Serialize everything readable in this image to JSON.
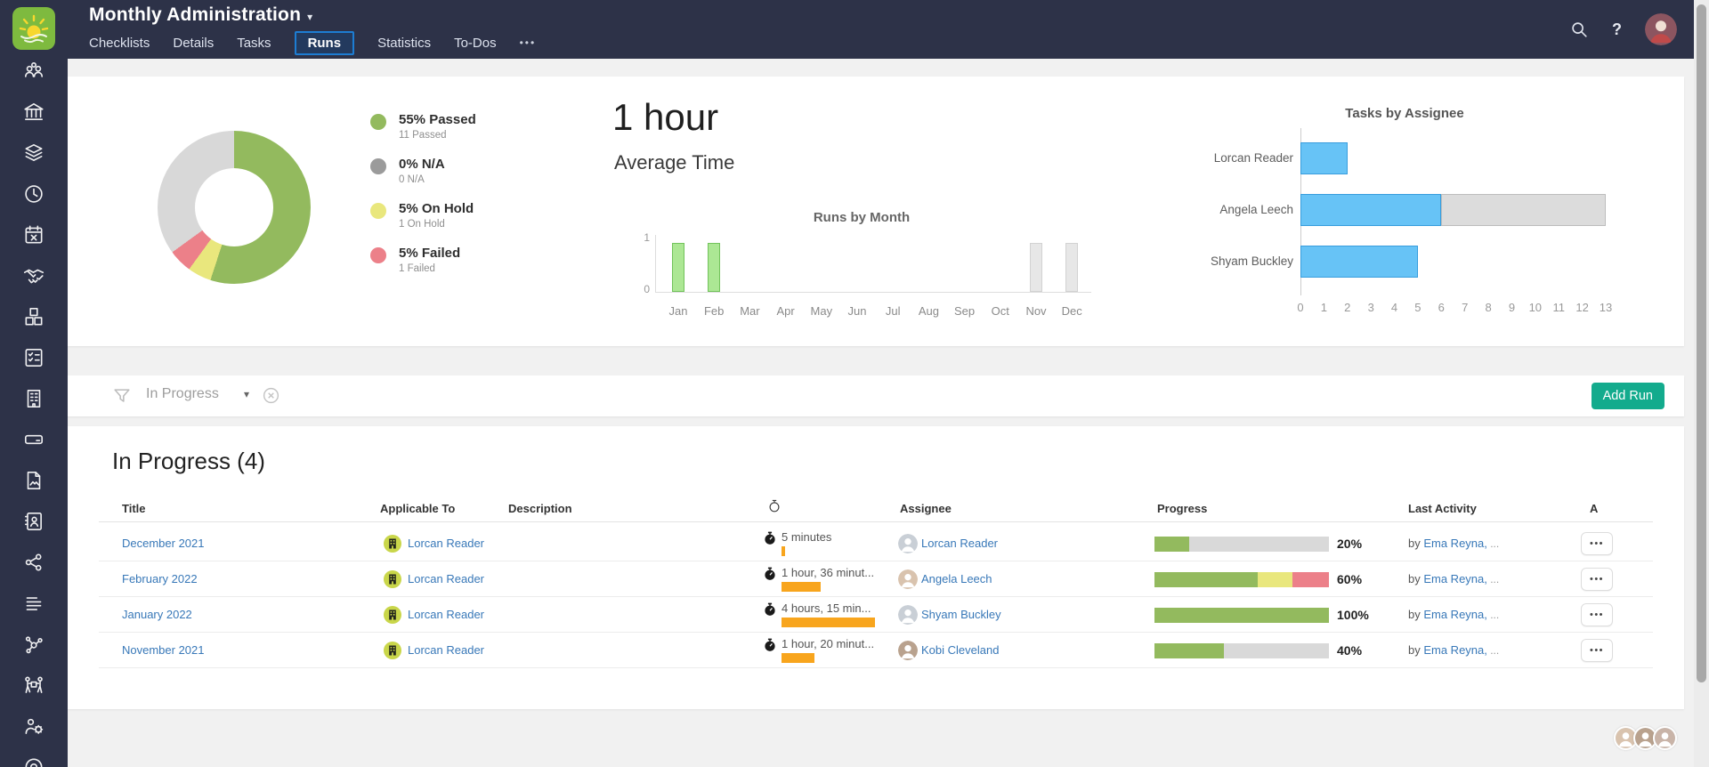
{
  "topbar": {
    "title": "Monthly Administration",
    "tabs": [
      {
        "label": "Checklists",
        "active": false
      },
      {
        "label": "Details",
        "active": false
      },
      {
        "label": "Tasks",
        "active": false
      },
      {
        "label": "Runs",
        "active": true
      },
      {
        "label": "Statistics",
        "active": false
      },
      {
        "label": "To-Dos",
        "active": false
      }
    ],
    "more_label": "•••",
    "help_label": "?"
  },
  "sidebar": {
    "icons": [
      "users-group",
      "bank",
      "layers",
      "clock",
      "calendar-x",
      "handshake",
      "cubes",
      "checklist",
      "building",
      "hard-drive",
      "file-image",
      "contact-book",
      "share-nodes",
      "text-lines",
      "network",
      "people-carry",
      "users-gear",
      "target"
    ]
  },
  "stats": {
    "average_value": "1 hour",
    "average_label": "Average Time",
    "legend": [
      {
        "label": "55% Passed",
        "sub": "11 Passed",
        "color": "#93ba5e"
      },
      {
        "label": "0% N/A",
        "sub": "0 N/A",
        "color": "#9b9b9b"
      },
      {
        "label": "5% On Hold",
        "sub": "1 On Hold",
        "color": "#e9e77d"
      },
      {
        "label": "5% Failed",
        "sub": "1 Failed",
        "color": "#ec8089"
      }
    ]
  },
  "chart_data": [
    {
      "type": "pie",
      "name": "run-status-donut",
      "slices": [
        {
          "label": "Passed",
          "pct": 55,
          "count": 11,
          "color": "#93ba5e"
        },
        {
          "label": "N/A",
          "pct": 0,
          "count": 0,
          "color": "#9b9b9b"
        },
        {
          "label": "On Hold",
          "pct": 5,
          "count": 1,
          "color": "#e9e77d"
        },
        {
          "label": "Failed",
          "pct": 5,
          "count": 1,
          "color": "#ec8089"
        },
        {
          "label": "Remaining",
          "pct": 35,
          "count": null,
          "color": "#d8d8d8"
        }
      ]
    },
    {
      "type": "bar",
      "title": "Runs by Month",
      "categories": [
        "Jan",
        "Feb",
        "Mar",
        "Apr",
        "May",
        "Jun",
        "Jul",
        "Aug",
        "Sep",
        "Oct",
        "Nov",
        "Dec"
      ],
      "values": [
        1,
        1,
        0,
        0,
        0,
        0,
        0,
        0,
        0,
        0,
        1,
        1
      ],
      "bar_colors": [
        "green",
        "green",
        "green",
        "green",
        "green",
        "green",
        "green",
        "green",
        "green",
        "green",
        "gray",
        "gray"
      ],
      "ylim": [
        0,
        1
      ],
      "yticks": [
        0,
        1
      ],
      "green_fill": "#ace794",
      "green_border": "#72c35b",
      "gray_fill": "#e7e7e7",
      "gray_border": "#d2d2d2"
    },
    {
      "type": "bar",
      "orientation": "horizontal",
      "title": "Tasks by Assignee",
      "categories": [
        "Lorcan Reader",
        "Angela Leech",
        "Shyam Buckley"
      ],
      "series": [
        {
          "name": "tasks",
          "color": "#67c3f6",
          "border": "#389ddd",
          "values": [
            2,
            6,
            5
          ]
        },
        {
          "name": "remaining",
          "color": "#dcdcdc",
          "border": "#bdbdbd",
          "values": [
            0,
            7,
            0
          ]
        }
      ],
      "xlim": [
        0,
        13
      ],
      "xticks": [
        0,
        1,
        2,
        3,
        4,
        5,
        6,
        7,
        8,
        9,
        10,
        11,
        12,
        13
      ]
    }
  ],
  "filter": {
    "value": "In Progress",
    "add_run_label": "Add Run"
  },
  "table": {
    "heading": "In Progress (4)",
    "columns": [
      "Title",
      "Applicable To",
      "Description",
      "timer",
      "Assignee",
      "Progress",
      "Last Activity",
      "A"
    ],
    "actions_label": "•••",
    "rows": [
      {
        "title": "December 2021",
        "applicable_to": "Lorcan Reader",
        "description": "",
        "time": "5 minutes",
        "time_bar": 4,
        "assignee": "Lorcan Reader",
        "progress": [
          {
            "color": "#93ba5e",
            "pct": 20
          },
          {
            "color": "#d9d9d9",
            "pct": 80
          }
        ],
        "progress_label": "20%",
        "activity_prefix": "by",
        "activity_link": "Ema Reyna,",
        "activity_more": "..."
      },
      {
        "title": "February 2022",
        "applicable_to": "Lorcan Reader",
        "description": "",
        "time": "1 hour, 36 minut...",
        "time_bar": 44,
        "assignee": "Angela Leech",
        "progress": [
          {
            "color": "#93ba5e",
            "pct": 59
          },
          {
            "color": "#e9e77d",
            "pct": 20
          },
          {
            "color": "#ec8089",
            "pct": 21
          }
        ],
        "progress_label": "60%",
        "activity_prefix": "by",
        "activity_link": "Ema Reyna,",
        "activity_more": "..."
      },
      {
        "title": "January 2022",
        "applicable_to": "Lorcan Reader",
        "description": "",
        "time": "4 hours, 15 min...",
        "time_bar": 105,
        "assignee": "Shyam Buckley",
        "progress": [
          {
            "color": "#93ba5e",
            "pct": 100
          }
        ],
        "progress_label": "100%",
        "activity_prefix": "by",
        "activity_link": "Ema Reyna,",
        "activity_more": "..."
      },
      {
        "title": "November 2021",
        "applicable_to": "Lorcan Reader",
        "description": "",
        "time": "1 hour, 20 minut...",
        "time_bar": 37,
        "assignee": "Kobi Cleveland",
        "progress": [
          {
            "color": "#93ba5e",
            "pct": 40
          },
          {
            "color": "#d9d9d9",
            "pct": 60
          }
        ],
        "progress_label": "40%",
        "activity_prefix": "by",
        "activity_link": "Ema Reyna,",
        "activity_more": "..."
      }
    ]
  },
  "presence": {
    "avatars": [
      "teammate-1",
      "teammate-2",
      "teammate-3"
    ]
  },
  "colors": {
    "topbar": "#2d3248",
    "accent_blue": "#1d7dd3",
    "link": "#3878b8",
    "green": "#93ba5e",
    "yellow": "#e9e77d",
    "red": "#ec8089",
    "orange": "#f8a51d",
    "teal_button": "#13ab8d",
    "bar_blue": "#67c3f6",
    "logo_green": "#7eba3f"
  }
}
